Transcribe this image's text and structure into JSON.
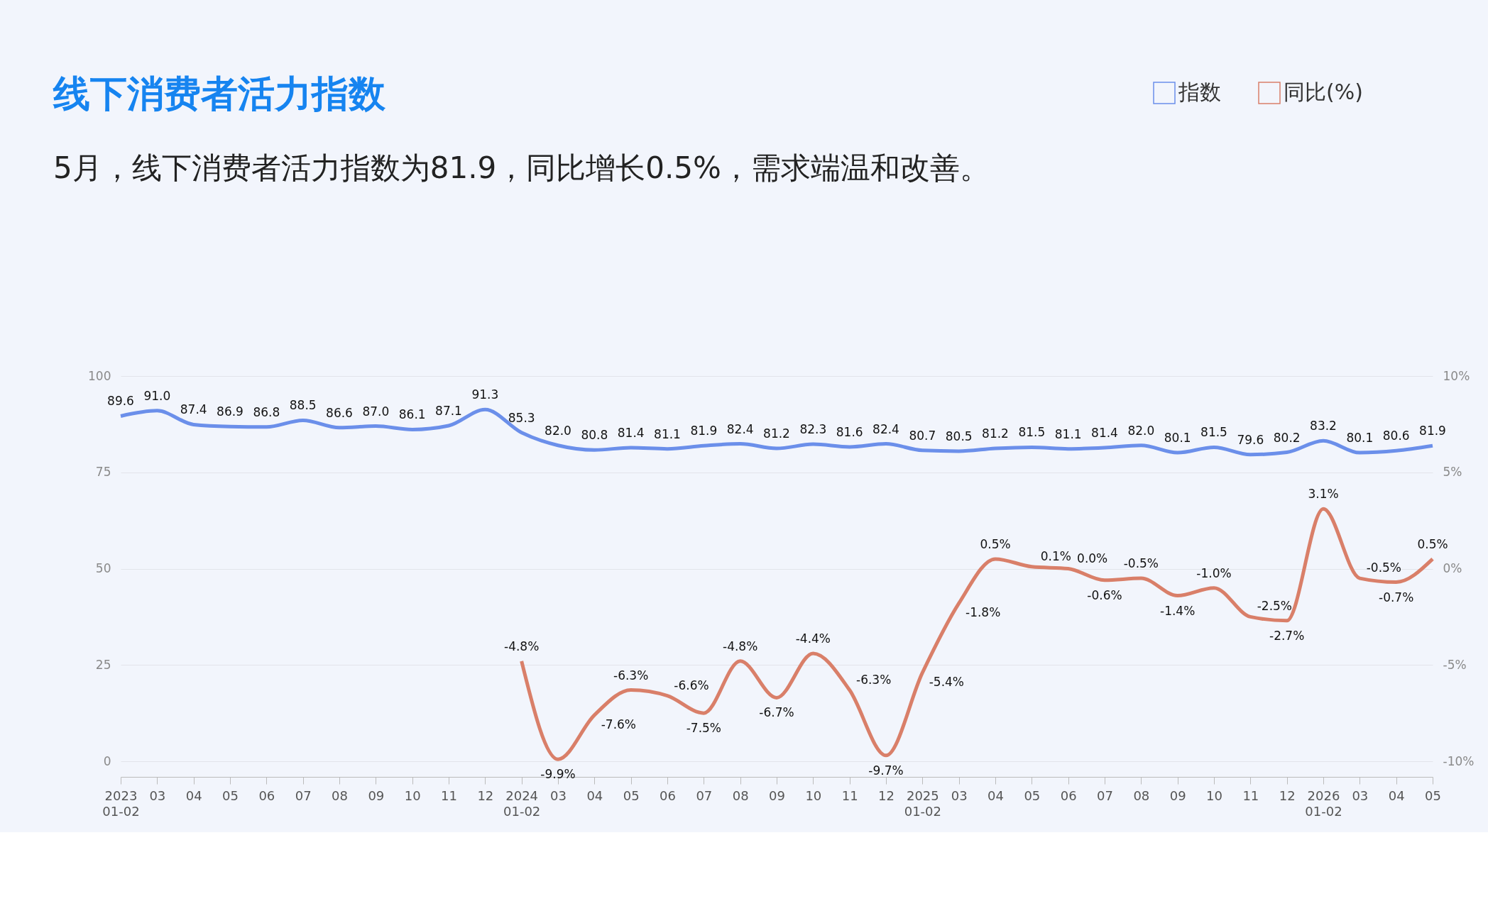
{
  "chart_data": {
    "type": "line",
    "title": "线下消费者活力指数",
    "subtitle": "5月，线下消费者活力指数为81.9，同比增长0.5%，需求端温和改善。",
    "categories": [
      "2023\n01-02",
      "03",
      "04",
      "05",
      "06",
      "07",
      "08",
      "09",
      "10",
      "11",
      "12",
      "2024\n01-02",
      "03",
      "04",
      "05",
      "06",
      "07",
      "08",
      "09",
      "10",
      "11",
      "12",
      "2025\n01-02",
      "03",
      "04",
      "05",
      "06",
      "07",
      "08",
      "09",
      "10",
      "11",
      "12",
      "2026\n01-02",
      "03",
      "04",
      "05"
    ],
    "series": [
      {
        "name": "指数",
        "color": "#6b8fea",
        "values": [
          89.6,
          91.0,
          87.4,
          86.9,
          86.8,
          88.5,
          86.6,
          87.0,
          86.1,
          87.1,
          91.3,
          85.3,
          82.0,
          80.8,
          81.4,
          81.1,
          81.9,
          82.4,
          81.2,
          82.3,
          81.6,
          82.4,
          80.7,
          80.5,
          81.2,
          81.5,
          81.1,
          81.4,
          82.0,
          80.1,
          81.5,
          79.6,
          80.2,
          83.2,
          80.1,
          80.6,
          81.9
        ],
        "value_labels": [
          "89.6",
          "91.0",
          "87.4",
          "86.9",
          "86.8",
          "88.5",
          "86.6",
          "87.0",
          "86.1",
          "87.1",
          "91.3",
          "85.3",
          "82.0",
          "80.8",
          "81.4",
          "81.1",
          "81.9",
          "82.4",
          "81.2",
          "82.3",
          "81.6",
          "82.4",
          "80.7",
          "80.5",
          "81.2",
          "81.5",
          "81.1",
          "81.4",
          "82.0",
          "80.1",
          "81.5",
          "79.6",
          "80.2",
          "83.2",
          "80.1",
          "80.6",
          "81.9"
        ]
      },
      {
        "name": "同比(%)",
        "color": "#d97f69",
        "axis": "y2",
        "values": [
          null,
          null,
          null,
          null,
          null,
          null,
          null,
          null,
          null,
          null,
          null,
          -4.8,
          -9.9,
          -7.6,
          -6.3,
          -6.6,
          -7.5,
          -4.8,
          -6.7,
          -4.4,
          -6.3,
          -9.7,
          -5.4,
          -1.8,
          0.5,
          0.1,
          0.0,
          -0.6,
          -0.5,
          -1.4,
          -1.0,
          -2.5,
          -2.7,
          3.1,
          -0.5,
          -0.7,
          0.5
        ],
        "value_labels": [
          null,
          null,
          null,
          null,
          null,
          null,
          null,
          null,
          null,
          null,
          null,
          "-4.8%",
          "-9.9%",
          "-7.6%",
          "-6.3%",
          "-6.6%",
          "-7.5%",
          "-4.8%",
          "-6.7%",
          "-4.4%",
          "-6.3%",
          "-9.7%",
          "-5.4%",
          "-1.8%",
          "0.5%",
          "0.1%",
          "0.0%",
          "-0.6%",
          "-0.5%",
          "-1.4%",
          "-1.0%",
          "-2.5%",
          "-2.7%",
          "3.1%",
          "-0.5%",
          "-0.7%",
          "0.5%"
        ]
      }
    ],
    "ylim": [
      0,
      100
    ],
    "yticks": [
      0,
      25,
      50,
      75,
      100
    ],
    "y2lim": [
      -10,
      10
    ],
    "y2ticks": [
      {
        "value": -10,
        "label": "-10%"
      },
      {
        "value": -5,
        "label": "-5%"
      },
      {
        "value": 0,
        "label": "0%"
      },
      {
        "value": 5,
        "label": "5%"
      },
      {
        "value": 10,
        "label": "10%"
      }
    ],
    "grid": "y",
    "legend": "top right",
    "marker": "none",
    "line_style": "solid"
  }
}
